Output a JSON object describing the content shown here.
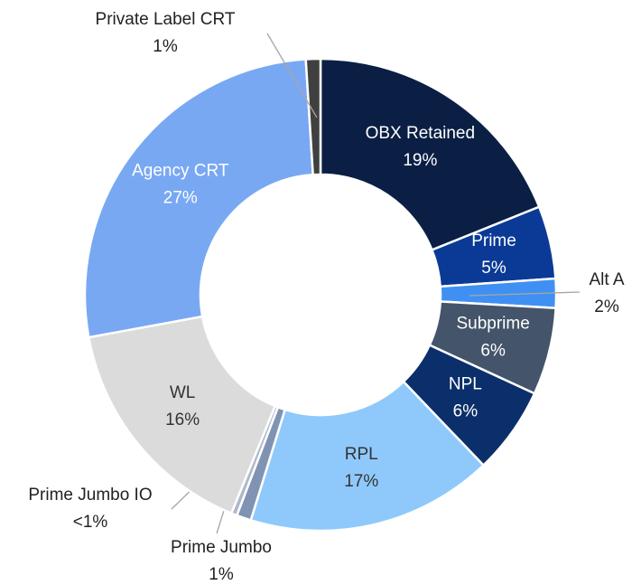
{
  "chart_data": {
    "type": "donut",
    "categories": [
      "OBX Retained",
      "Prime",
      "Alt A",
      "Subprime",
      "NPL",
      "RPL",
      "Prime Jumbo",
      "Prime Jumbo IO",
      "WL",
      "Agency CRT",
      "Private Label CRT"
    ],
    "values": [
      19,
      5,
      2,
      6,
      6,
      17,
      1,
      0.4,
      16,
      27,
      1
    ],
    "value_labels": [
      "19%",
      "5%",
      "2%",
      "6%",
      "6%",
      "17%",
      "1%",
      "<1%",
      "16%",
      "27%",
      "1%"
    ],
    "colors": [
      "#0b1f45",
      "#0b3a96",
      "#3f90f2",
      "#44546a",
      "#0b2f6a",
      "#8fc9fb",
      "#8193b2",
      "#adb9ca",
      "#dcdbdc",
      "#79a8f3",
      "#404040"
    ]
  }
}
